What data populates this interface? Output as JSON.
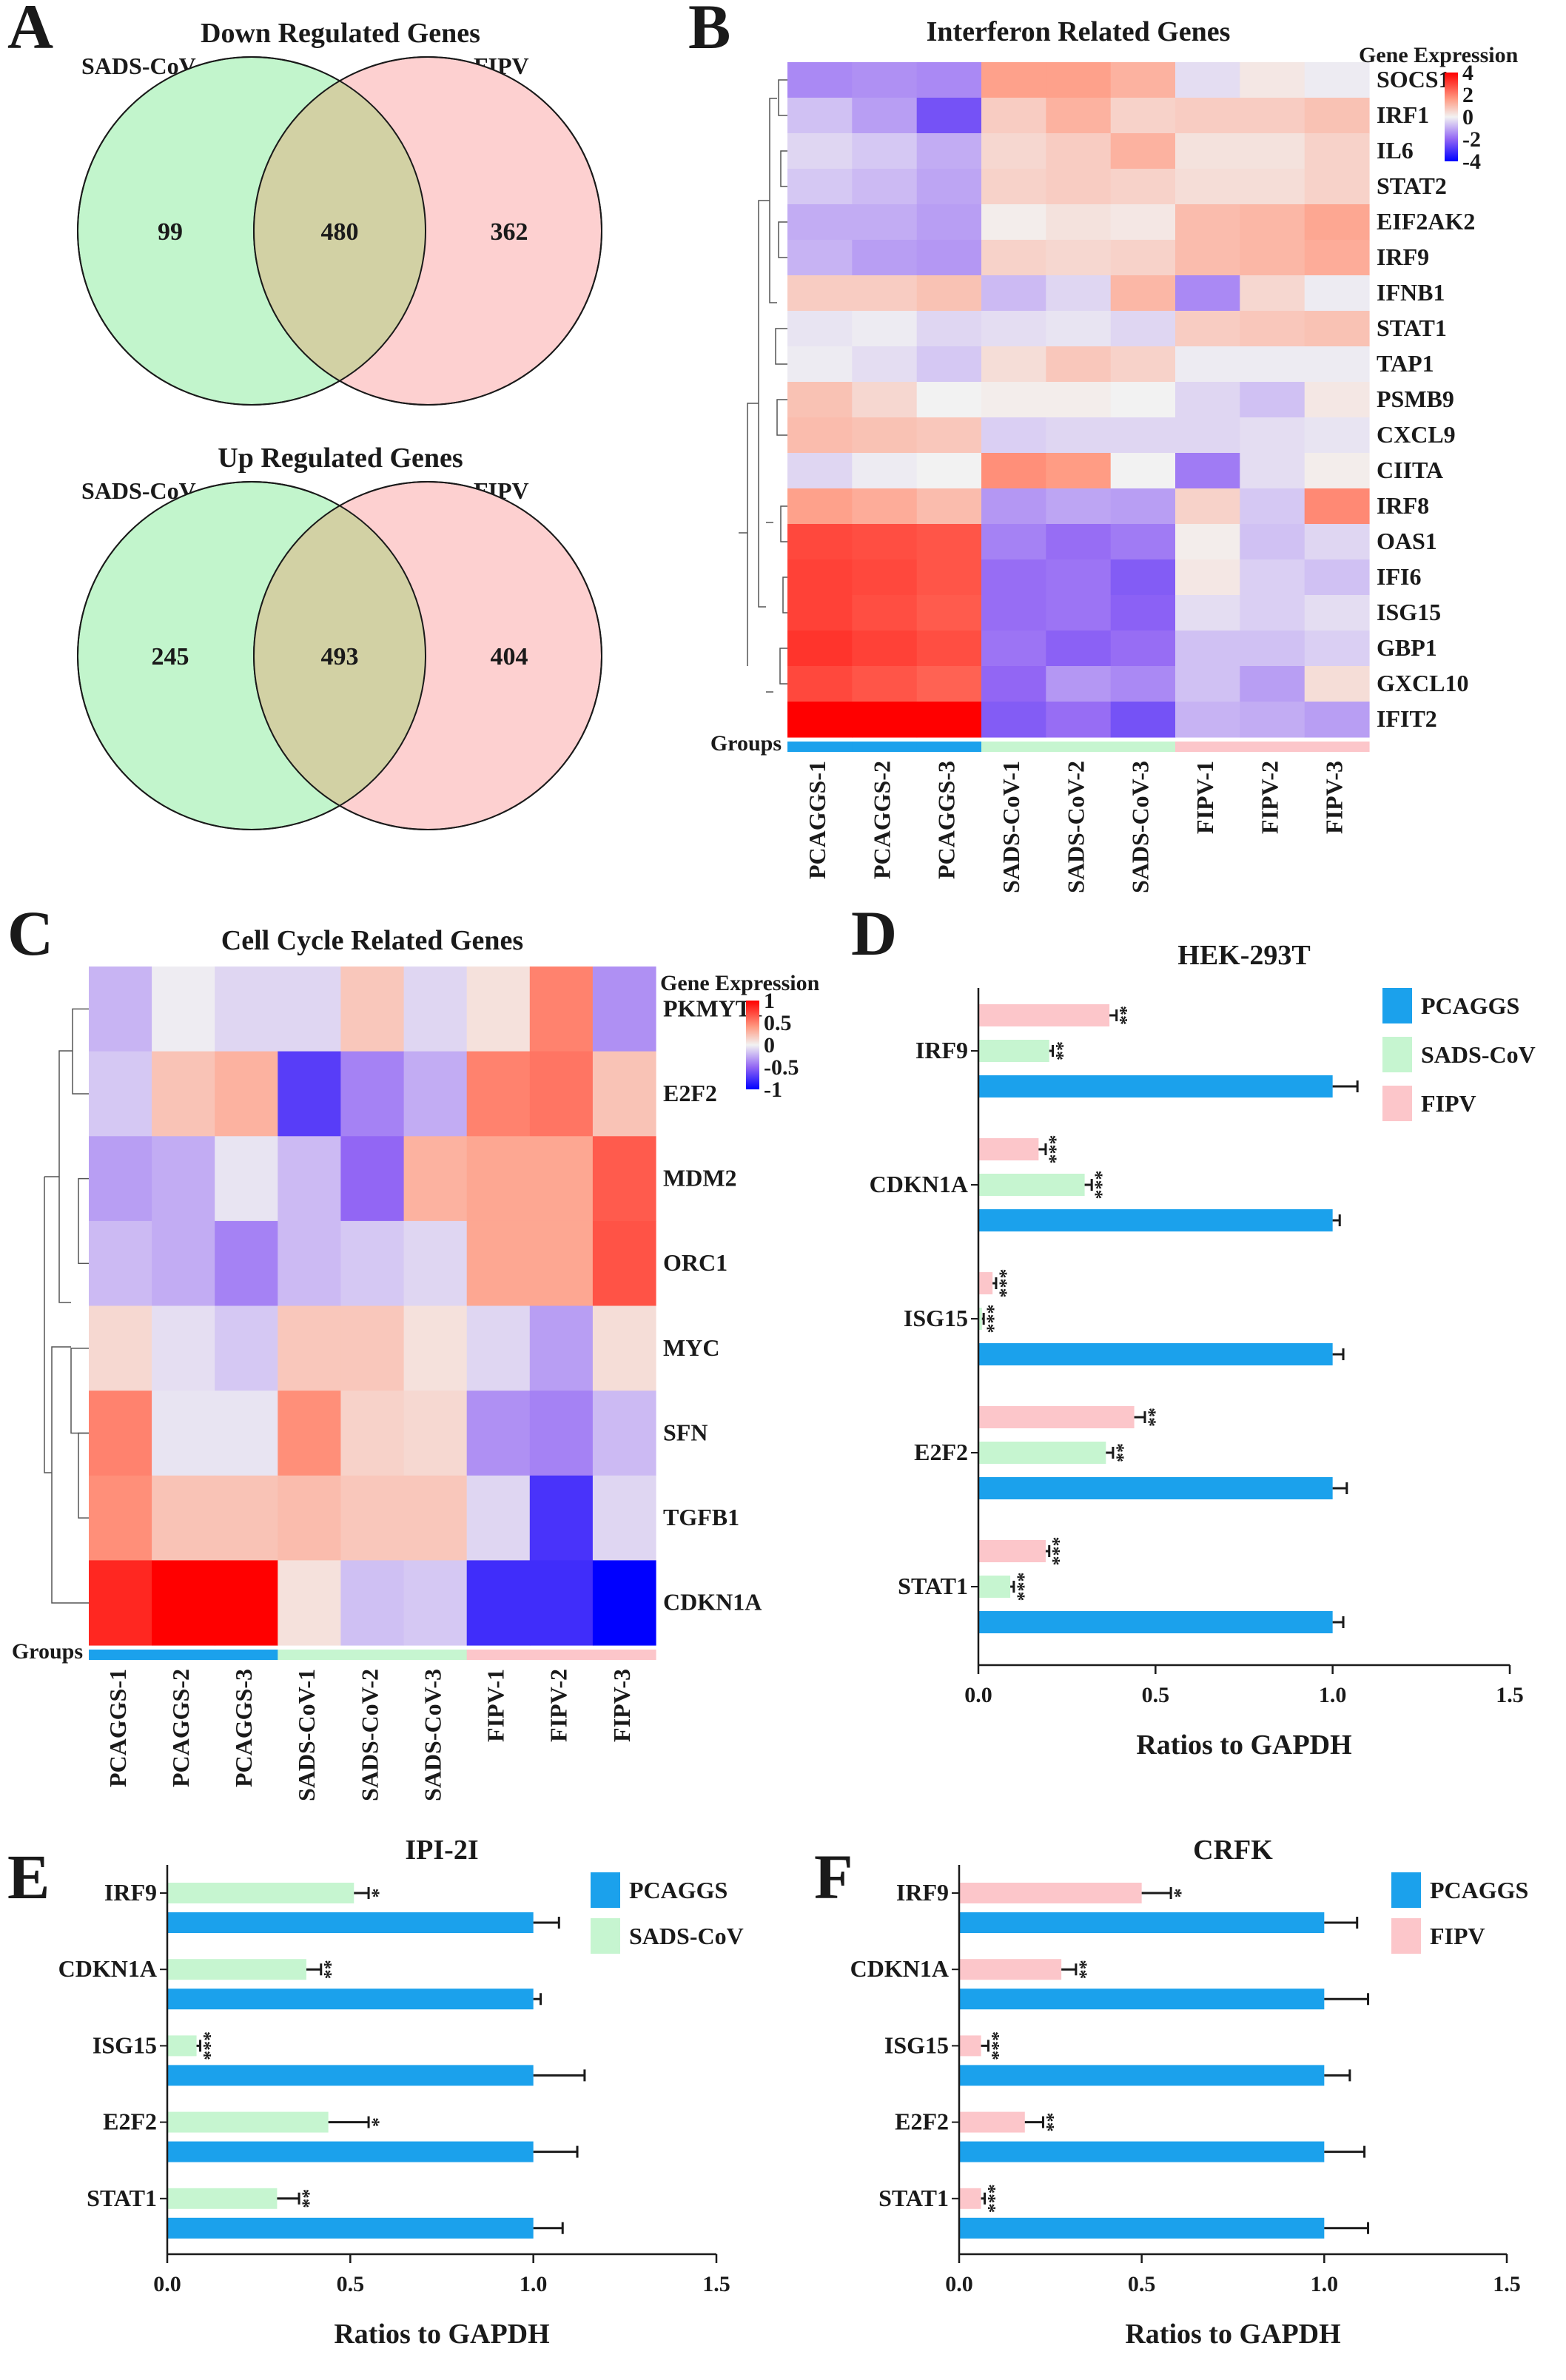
{
  "colors": {
    "pcaggs": "#1ba1ec",
    "sads": "#c6f5d0",
    "fipv": "#fcc6ca",
    "venn_left": "#c2f5cc",
    "venn_right": "#fdd0d0",
    "venn_overlap": "#d2d1a4",
    "heat_high": "#ff0000",
    "heat_mid": "#f2f2f2",
    "heat_low": "#0000ff"
  },
  "panel_labels": {
    "A": "A",
    "B": "B",
    "C": "C",
    "D": "D",
    "E": "E",
    "F": "F"
  },
  "legend_labels": {
    "pcaggs": "PCAGGS",
    "sads": "SADS-CoV",
    "fipv": "FIPV"
  },
  "chart_data": [
    {
      "id": "A_down",
      "type": "venn",
      "title": "Down Regulated Genes",
      "sets": [
        "SADS-CoV",
        "FIPV"
      ],
      "counts": {
        "left_only": 99,
        "overlap": 480,
        "right_only": 362
      }
    },
    {
      "id": "A_up",
      "type": "venn",
      "title": "Up Regulated Genes",
      "sets": [
        "SADS-CoV",
        "FIPV"
      ],
      "counts": {
        "left_only": 245,
        "overlap": 493,
        "right_only": 404
      }
    },
    {
      "id": "B",
      "type": "heatmap",
      "title": "Interferon Related Genes",
      "legend_title": "Gene Expression",
      "scale_range": [
        -4,
        4
      ],
      "scale_ticks": [
        4,
        2,
        0,
        -2,
        -4
      ],
      "groups_label": "Groups",
      "columns": [
        "PCAGGS-1",
        "PCAGGS-2",
        "PCAGGS-3",
        "SADS-CoV-1",
        "SADS-CoV-2",
        "SADS-CoV-3",
        "FIPV-1",
        "FIPV-2",
        "FIPV-3"
      ],
      "column_groups": [
        "pcaggs",
        "pcaggs",
        "pcaggs",
        "sads",
        "sads",
        "sads",
        "fipv",
        "fipv",
        "fipv"
      ],
      "rows": [
        "SOCS1",
        "IRF1",
        "IL6",
        "STAT2",
        "EIF2AK2",
        "IRF9",
        "IFNB1",
        "STAT1",
        "TAP1",
        "PSMB9",
        "CXCL9",
        "CIITA",
        "IRF8",
        "OAS1",
        "IFI6",
        "ISG15",
        "GBP1",
        "GXCL10",
        "IFIT2"
      ],
      "values": [
        [
          -1.5,
          -1.4,
          -1.5,
          1.5,
          1.5,
          1.2,
          -0.3,
          0.2,
          -0.1
        ],
        [
          -0.7,
          -1.2,
          -2.4,
          0.7,
          1.2,
          0.6,
          0.7,
          0.7,
          0.9
        ],
        [
          -0.4,
          -0.6,
          -1.0,
          0.5,
          0.7,
          1.2,
          0.3,
          0.3,
          0.6
        ],
        [
          -0.6,
          -0.8,
          -1.1,
          0.6,
          0.7,
          0.6,
          0.4,
          0.4,
          0.6
        ],
        [
          -1.0,
          -1.0,
          -1.2,
          0.1,
          0.3,
          0.2,
          1.0,
          1.1,
          1.4
        ],
        [
          -0.9,
          -1.2,
          -1.3,
          0.6,
          0.5,
          0.6,
          1.0,
          1.1,
          1.3
        ],
        [
          0.7,
          0.7,
          0.9,
          -0.8,
          -0.4,
          1.1,
          -1.5,
          0.5,
          -0.1
        ],
        [
          -0.2,
          -0.1,
          -0.4,
          -0.3,
          -0.2,
          -0.4,
          0.7,
          0.8,
          0.9
        ],
        [
          -0.1,
          -0.3,
          -0.6,
          0.4,
          0.8,
          0.6,
          -0.1,
          -0.1,
          -0.1
        ],
        [
          0.9,
          0.5,
          0.0,
          0.1,
          0.1,
          0.0,
          -0.4,
          -0.7,
          0.2
        ],
        [
          1.0,
          0.9,
          0.8,
          -0.5,
          -0.4,
          -0.4,
          -0.4,
          -0.3,
          -0.2
        ],
        [
          -0.4,
          -0.1,
          0.0,
          1.8,
          1.6,
          0.0,
          -1.7,
          -0.3,
          0.1
        ],
        [
          1.5,
          1.3,
          1.0,
          -1.3,
          -1.1,
          -1.2,
          0.6,
          -0.6,
          1.9
        ],
        [
          2.9,
          2.8,
          2.7,
          -1.6,
          -1.9,
          -1.7,
          0.1,
          -0.7,
          -0.4
        ],
        [
          3.0,
          2.9,
          2.7,
          -1.9,
          -1.8,
          -2.2,
          0.2,
          -0.5,
          -0.7
        ],
        [
          3.0,
          2.8,
          2.6,
          -1.9,
          -1.8,
          -2.1,
          -0.3,
          -0.5,
          -0.3
        ],
        [
          3.2,
          3.0,
          2.8,
          -1.8,
          -2.1,
          -1.9,
          -0.7,
          -0.7,
          -0.5
        ],
        [
          2.9,
          2.7,
          2.5,
          -2.0,
          -1.3,
          -1.5,
          -0.7,
          -1.2,
          0.4
        ],
        [
          4.0,
          4.0,
          4.0,
          -2.2,
          -1.9,
          -2.4,
          -0.9,
          -1.0,
          -1.2
        ]
      ]
    },
    {
      "id": "C",
      "type": "heatmap",
      "title": "Cell Cycle Related Genes",
      "legend_title": "Gene Expression",
      "scale_range": [
        -1,
        1
      ],
      "scale_ticks": [
        1,
        0.5,
        0,
        -0.5,
        -1
      ],
      "groups_label": "Groups",
      "columns": [
        "PCAGGS-1",
        "PCAGGS-2",
        "PCAGGS-3",
        "SADS-CoV-1",
        "SADS-CoV-2",
        "SADS-CoV-3",
        "FIPV-1",
        "FIPV-2",
        "FIPV-3"
      ],
      "column_groups": [
        "pcaggs",
        "pcaggs",
        "pcaggs",
        "sads",
        "sads",
        "sads",
        "fipv",
        "fipv",
        "fipv"
      ],
      "rows": [
        "PKMYT1",
        "E2F2",
        "MDM2",
        "ORC1",
        "MYC",
        "SFN",
        "TGFB1",
        "CDKN1A"
      ],
      "values": [
        [
          -0.22,
          -0.02,
          -0.1,
          -0.1,
          0.2,
          -0.1,
          0.08,
          0.5,
          -0.35
        ],
        [
          -0.15,
          0.22,
          0.3,
          -0.7,
          -0.4,
          -0.25,
          0.5,
          0.55,
          0.22
        ],
        [
          -0.3,
          -0.25,
          -0.05,
          -0.2,
          -0.5,
          0.3,
          0.35,
          0.35,
          0.65
        ],
        [
          -0.2,
          -0.25,
          -0.4,
          -0.2,
          -0.15,
          -0.1,
          0.35,
          0.35,
          0.68
        ],
        [
          0.12,
          -0.07,
          -0.15,
          0.2,
          0.2,
          0.08,
          -0.1,
          -0.3,
          0.1
        ],
        [
          0.5,
          -0.05,
          -0.05,
          0.45,
          0.15,
          0.12,
          -0.35,
          -0.4,
          -0.2
        ],
        [
          0.45,
          0.22,
          0.22,
          0.25,
          0.2,
          0.2,
          -0.1,
          -0.75,
          -0.1
        ],
        [
          0.85,
          1.0,
          1.0,
          0.08,
          -0.18,
          -0.15,
          -0.78,
          -0.78,
          -1.0
        ]
      ]
    },
    {
      "id": "D",
      "type": "bar",
      "orientation": "horizontal",
      "title": "HEK-293T",
      "xlabel": "Ratios to GAPDH",
      "xlim": [
        0,
        1.5
      ],
      "xticks": [
        "0.0",
        "0.5",
        "1.0",
        "1.5"
      ],
      "categories": [
        "IRF9",
        "CDKN1A",
        "ISG15",
        "E2F2",
        "STAT1"
      ],
      "series": [
        {
          "name": "PCAGGS",
          "color_key": "pcaggs",
          "values": [
            1.0,
            1.0,
            1.0,
            1.0,
            1.0
          ],
          "errors": [
            0.07,
            0.02,
            0.03,
            0.04,
            0.03
          ],
          "sig": [
            "",
            "",
            "",
            "",
            ""
          ]
        },
        {
          "name": "SADS-CoV",
          "color_key": "sads",
          "values": [
            0.2,
            0.3,
            0.01,
            0.36,
            0.09
          ],
          "errors": [
            0.01,
            0.02,
            0.005,
            0.02,
            0.01
          ],
          "sig": [
            "**",
            "***",
            "***",
            "**",
            "***"
          ]
        },
        {
          "name": "FIPV",
          "color_key": "fipv",
          "values": [
            0.37,
            0.17,
            0.04,
            0.44,
            0.19
          ],
          "errors": [
            0.02,
            0.02,
            0.01,
            0.03,
            0.01
          ],
          "sig": [
            "**",
            "***",
            "***",
            "**",
            "***"
          ]
        }
      ],
      "legend": [
        "PCAGGS",
        "SADS-CoV",
        "FIPV"
      ]
    },
    {
      "id": "E",
      "type": "bar",
      "orientation": "horizontal",
      "title": "IPI-2I",
      "xlabel": "Ratios to GAPDH",
      "xlim": [
        0,
        1.5
      ],
      "xticks": [
        "0.0",
        "0.5",
        "1.0",
        "1.5"
      ],
      "categories": [
        "IRF9",
        "CDKN1A",
        "ISG15",
        "E2F2",
        "STAT1"
      ],
      "series": [
        {
          "name": "PCAGGS",
          "color_key": "pcaggs",
          "values": [
            1.0,
            1.0,
            1.0,
            1.0,
            1.0
          ],
          "errors": [
            0.07,
            0.02,
            0.14,
            0.12,
            0.08
          ],
          "sig": [
            "",
            "",
            "",
            "",
            ""
          ]
        },
        {
          "name": "SADS-CoV",
          "color_key": "sads",
          "values": [
            0.51,
            0.38,
            0.08,
            0.44,
            0.3
          ],
          "errors": [
            0.04,
            0.04,
            0.01,
            0.11,
            0.06
          ],
          "sig": [
            "*",
            "**",
            "***",
            "*",
            "**"
          ]
        }
      ],
      "legend": [
        "PCAGGS",
        "SADS-CoV"
      ]
    },
    {
      "id": "F",
      "type": "bar",
      "orientation": "horizontal",
      "title": "CRFK",
      "xlabel": "Ratios to GAPDH",
      "xlim": [
        0,
        1.5
      ],
      "xticks": [
        "0.0",
        "0.5",
        "1.0",
        "1.5"
      ],
      "categories": [
        "IRF9",
        "CDKN1A",
        "ISG15",
        "E2F2",
        "STAT1"
      ],
      "series": [
        {
          "name": "PCAGGS",
          "color_key": "pcaggs",
          "values": [
            1.0,
            1.0,
            1.0,
            1.0,
            1.0
          ],
          "errors": [
            0.09,
            0.12,
            0.07,
            0.11,
            0.12
          ],
          "sig": [
            "",
            "",
            "",
            "",
            ""
          ]
        },
        {
          "name": "FIPV",
          "color_key": "fipv",
          "values": [
            0.5,
            0.28,
            0.06,
            0.18,
            0.06
          ],
          "errors": [
            0.08,
            0.04,
            0.02,
            0.05,
            0.01
          ],
          "sig": [
            "*",
            "**",
            "***",
            "**",
            "***"
          ]
        }
      ],
      "legend": [
        "PCAGGS",
        "FIPV"
      ]
    }
  ]
}
